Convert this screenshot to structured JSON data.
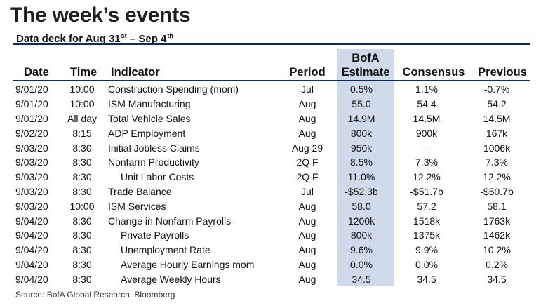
{
  "title": "The week’s events",
  "subtitle": {
    "prefix": "Data deck for Aug 31",
    "sup1": "st",
    "middle": " – Sep 4",
    "sup2": "th"
  },
  "headers": {
    "date": "Date",
    "time": "Time",
    "indicator": "Indicator",
    "period": "Period",
    "bofa_line1": "BofA",
    "bofa_line2": "Estimate",
    "consensus": "Consensus",
    "previous": "Previous"
  },
  "rows": [
    {
      "date": "9/01/20",
      "time": "10:00",
      "indicator": "Construction Spending (mom)",
      "sub": false,
      "period": "Jul",
      "bofa": "0.5%",
      "consensus": "1.1%",
      "previous": "-0.7%"
    },
    {
      "date": "9/01/20",
      "time": "10:00",
      "indicator": "ISM Manufacturing",
      "sub": false,
      "period": "Aug",
      "bofa": "55.0",
      "consensus": "54.4",
      "previous": "54.2"
    },
    {
      "date": "9/01/20",
      "time": "All day",
      "indicator": "Total Vehicle Sales",
      "sub": false,
      "period": "Aug",
      "bofa": "14.9M",
      "consensus": "14.5M",
      "previous": "14.5M"
    },
    {
      "date": "9/02/20",
      "time": "8:15",
      "indicator": "ADP Employment",
      "sub": false,
      "period": "Aug",
      "bofa": "800k",
      "consensus": "900k",
      "previous": "167k"
    },
    {
      "date": "9/03/20",
      "time": "8:30",
      "indicator": "Initial Jobless Claims",
      "sub": false,
      "period": "Aug 29",
      "bofa": "950k",
      "consensus": "—",
      "previous": "1006k"
    },
    {
      "date": "9/03/20",
      "time": "8:30",
      "indicator": "Nonfarm Productivity",
      "sub": false,
      "period": "2Q F",
      "bofa": "8.5%",
      "consensus": "7.3%",
      "previous": "7.3%"
    },
    {
      "date": "9/03/20",
      "time": "8:30",
      "indicator": "Unit Labor Costs",
      "sub": true,
      "period": "2Q F",
      "bofa": "11.0%",
      "consensus": "12.2%",
      "previous": "12.2%"
    },
    {
      "date": "9/03/20",
      "time": "8:30",
      "indicator": "Trade Balance",
      "sub": false,
      "period": "Jul",
      "bofa": "-$52.3b",
      "consensus": "-$51.7b",
      "previous": "-$50.7b"
    },
    {
      "date": "9/03/20",
      "time": "10:00",
      "indicator": "ISM Services",
      "sub": false,
      "period": "Aug",
      "bofa": "58.0",
      "consensus": "57.2",
      "previous": "58.1"
    },
    {
      "date": "9/04/20",
      "time": "8:30",
      "indicator": "Change in Nonfarm Payrolls",
      "sub": false,
      "period": "Aug",
      "bofa": "1200k",
      "consensus": "1518k",
      "previous": "1763k"
    },
    {
      "date": "9/04/20",
      "time": "8:30",
      "indicator": "Private Payrolls",
      "sub": true,
      "period": "Aug",
      "bofa": "800k",
      "consensus": "1375k",
      "previous": "1462k"
    },
    {
      "date": "9/04/20",
      "time": "8:30",
      "indicator": "Unemployment Rate",
      "sub": true,
      "period": "Aug",
      "bofa": "9.6%",
      "consensus": "9.9%",
      "previous": "10.2%"
    },
    {
      "date": "9/04/20",
      "time": "8:30",
      "indicator": "Average Hourly Earnings mom",
      "sub": true,
      "period": "Aug",
      "bofa": "0.0%",
      "consensus": "0.0%",
      "previous": "0.2%"
    },
    {
      "date": "9/04/20",
      "time": "8:30",
      "indicator": "Average Weekly Hours",
      "sub": true,
      "period": "Aug",
      "bofa": "34.5",
      "consensus": "34.5",
      "previous": "34.5"
    }
  ],
  "source": "Source: BofA Global Research, Bloomberg",
  "colors": {
    "rule": "#0b2c6b",
    "estimate_shade": "#cfdbea",
    "text": "#111111"
  }
}
